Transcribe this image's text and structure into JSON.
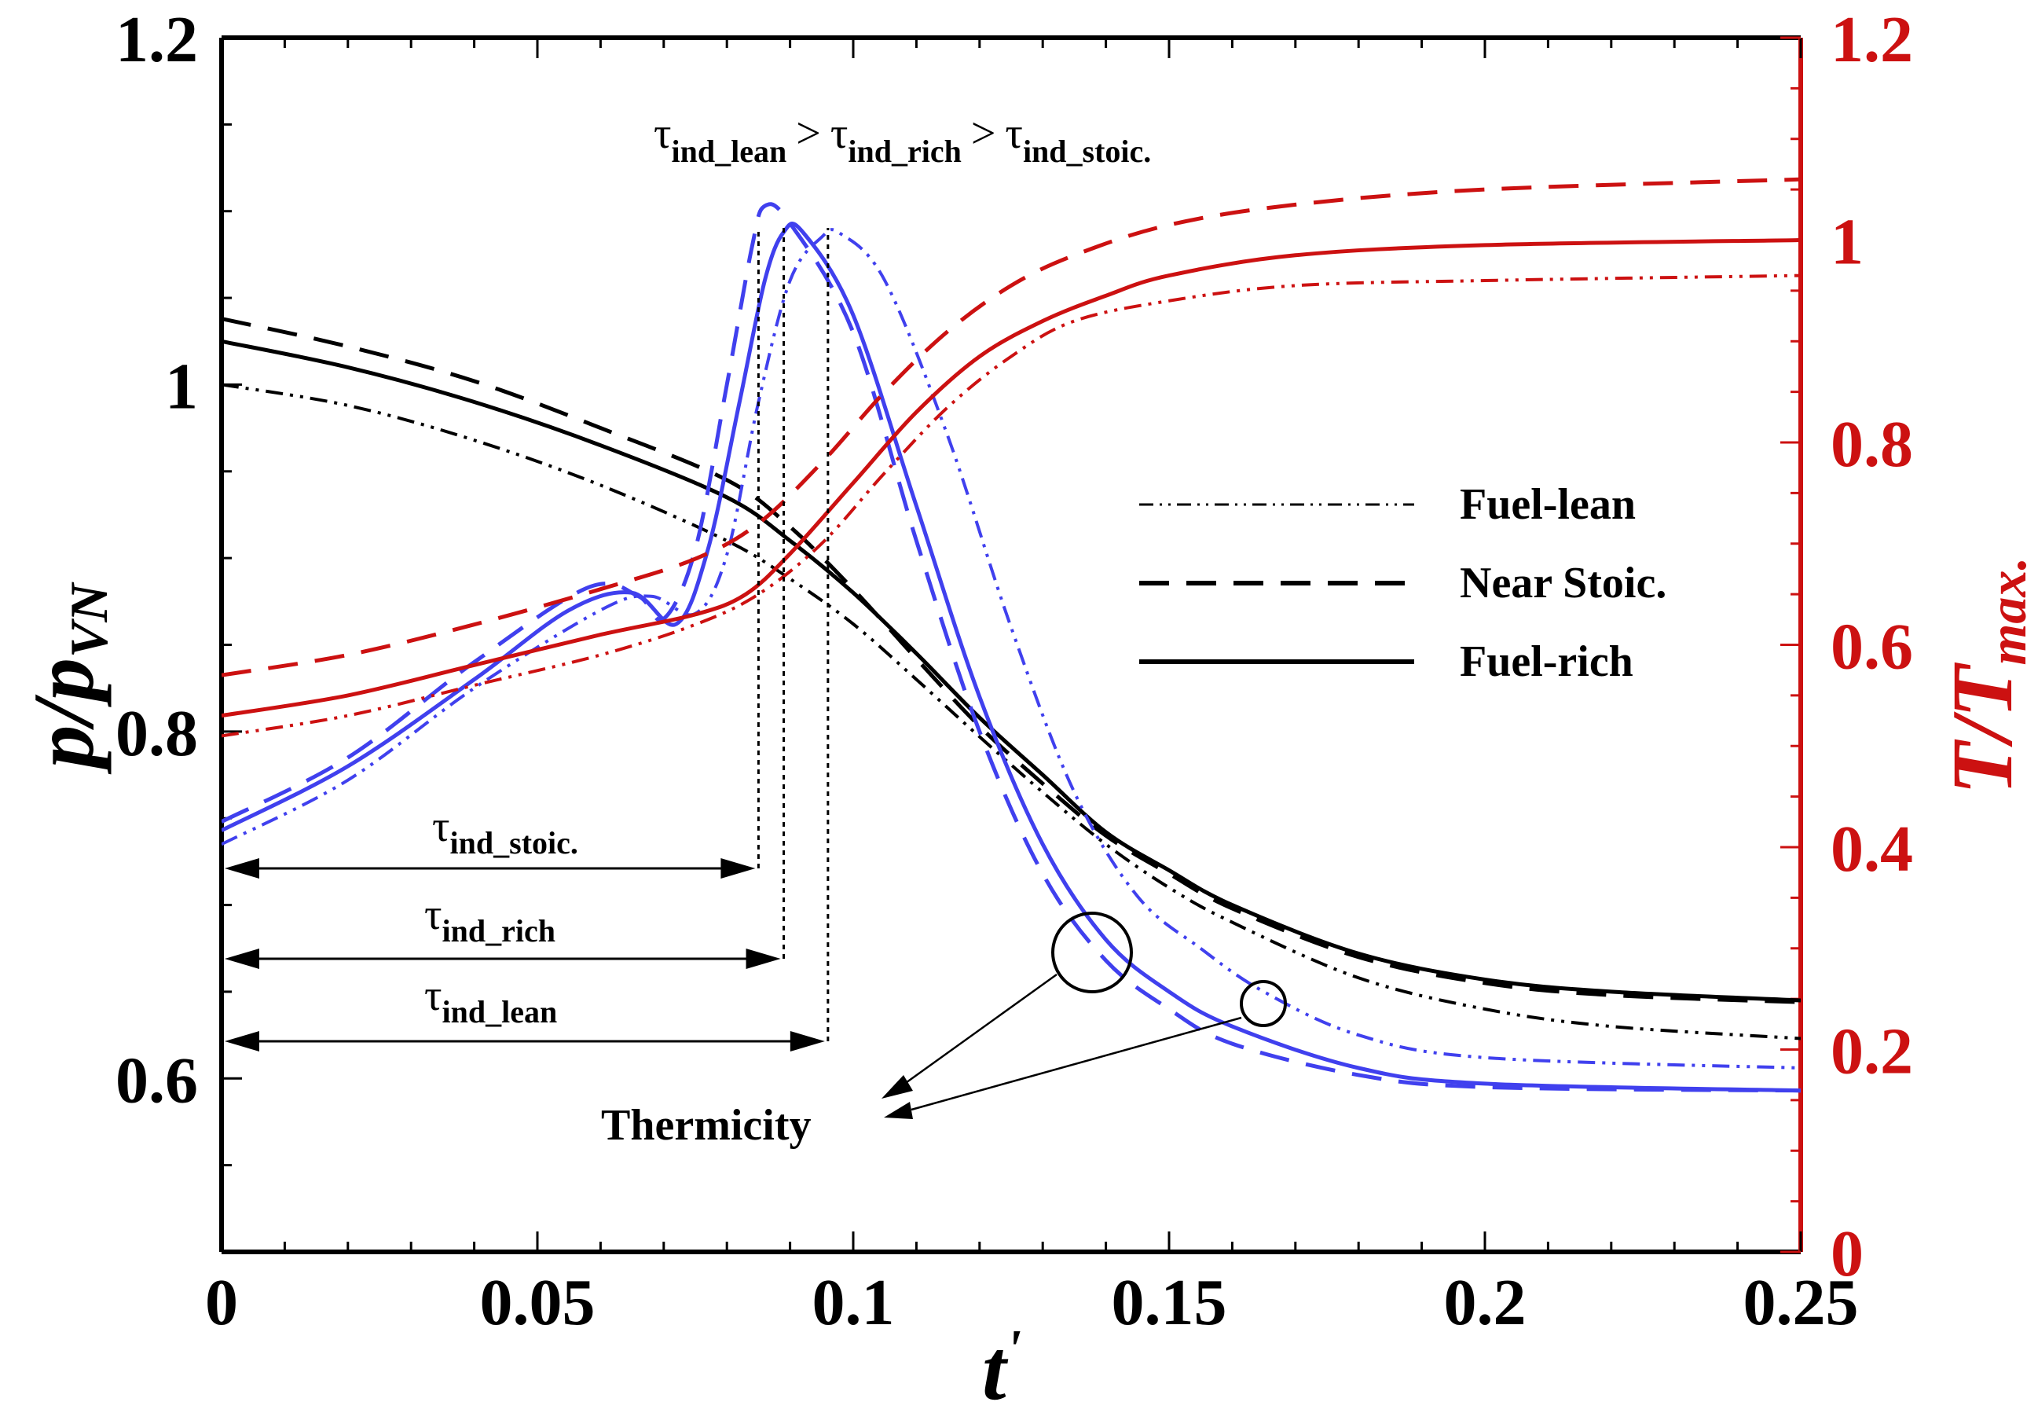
{
  "chart_data": {
    "type": "line",
    "xlabel": "t'",
    "ylabel_left": "p/p_VN",
    "ylabel_right": "T/T_max.",
    "xlim": [
      0,
      0.25
    ],
    "ylim_left": [
      0.5,
      1.2
    ],
    "ylim_right": [
      0,
      1.2
    ],
    "x_ticks": [
      "0",
      "0.05",
      "0.1",
      "0.15",
      "0.2",
      "0.25"
    ],
    "y_left_ticks": [
      "0.6",
      "0.8",
      "1",
      "1.2"
    ],
    "y_right_ticks": [
      "0",
      "0.2",
      "0.4",
      "0.6",
      "0.8",
      "1",
      "1.2"
    ],
    "legend": [
      {
        "label": "Fuel-lean",
        "style": "dash-dot-dot"
      },
      {
        "label": "Near Stoic.",
        "style": "dashed"
      },
      {
        "label": "Fuel-rich",
        "style": "solid"
      }
    ],
    "annotations": {
      "ordering": {
        "t1": "ind_lean",
        "t2": "ind_rich",
        "t3": "ind_stoic.",
        "gt": ">"
      },
      "tau_stoic": "ind_stoic.",
      "tau_rich": "ind_rich",
      "tau_lean": "ind_lean",
      "thermicity": "Thermicity",
      "tau_symbol": "τ"
    },
    "induction_times": {
      "stoic": 0.085,
      "rich": 0.089,
      "lean": 0.096
    },
    "series": [
      {
        "name": "Pressure, Fuel-rich",
        "axis": "left",
        "color": "#000000",
        "style": "solid",
        "x": [
          0,
          0.02,
          0.04,
          0.06,
          0.08,
          0.09,
          0.1,
          0.11,
          0.12,
          0.13,
          0.14,
          0.15,
          0.16,
          0.18,
          0.2,
          0.22,
          0.25
        ],
        "y": [
          1.025,
          1.01,
          0.99,
          0.965,
          0.935,
          0.91,
          0.88,
          0.845,
          0.808,
          0.775,
          0.742,
          0.72,
          0.7,
          0.672,
          0.657,
          0.65,
          0.645
        ]
      },
      {
        "name": "Pressure, Near Stoic.",
        "axis": "left",
        "color": "#000000",
        "style": "dashed",
        "x": [
          0,
          0.02,
          0.04,
          0.06,
          0.08,
          0.09,
          0.1,
          0.11,
          0.12,
          0.13,
          0.14,
          0.15,
          0.16,
          0.18,
          0.2,
          0.22,
          0.25
        ],
        "y": [
          1.038,
          1.022,
          1.002,
          0.975,
          0.945,
          0.918,
          0.882,
          0.842,
          0.803,
          0.77,
          0.74,
          0.718,
          0.698,
          0.67,
          0.655,
          0.648,
          0.644
        ]
      },
      {
        "name": "Pressure, Fuel-lean",
        "axis": "left",
        "color": "#000000",
        "style": "dash-dot-dot",
        "x": [
          0,
          0.02,
          0.04,
          0.06,
          0.08,
          0.09,
          0.1,
          0.11,
          0.12,
          0.13,
          0.14,
          0.15,
          0.16,
          0.18,
          0.2,
          0.22,
          0.25
        ],
        "y": [
          1.0,
          0.988,
          0.968,
          0.942,
          0.91,
          0.888,
          0.862,
          0.83,
          0.797,
          0.765,
          0.735,
          0.71,
          0.69,
          0.658,
          0.64,
          0.63,
          0.623
        ]
      },
      {
        "name": "Pressure peak, Fuel-rich",
        "axis": "left",
        "color": "#4040ee",
        "style": "solid",
        "x": [
          0,
          0.02,
          0.04,
          0.055,
          0.065,
          0.072,
          0.077,
          0.082,
          0.086,
          0.089,
          0.092,
          0.1,
          0.11,
          0.12,
          0.13,
          0.14,
          0.15,
          0.16,
          0.18,
          0.2,
          0.25
        ],
        "y": [
          0.743,
          0.78,
          0.83,
          0.87,
          0.88,
          0.862,
          0.905,
          0.99,
          1.06,
          1.088,
          1.088,
          1.04,
          0.93,
          0.82,
          0.735,
          0.68,
          0.65,
          0.63,
          0.606,
          0.597,
          0.593
        ]
      },
      {
        "name": "Pressure peak, Near Stoic.",
        "axis": "left",
        "color": "#4040ee",
        "style": "dashed",
        "x": [
          0,
          0.02,
          0.04,
          0.058,
          0.066,
          0.07,
          0.075,
          0.08,
          0.084,
          0.086,
          0.09,
          0.1,
          0.11,
          0.12,
          0.13,
          0.14,
          0.15,
          0.16,
          0.18,
          0.2,
          0.25
        ],
        "y": [
          0.748,
          0.785,
          0.84,
          0.883,
          0.878,
          0.865,
          0.905,
          1.0,
          1.08,
          1.103,
          1.093,
          1.03,
          0.91,
          0.8,
          0.718,
          0.668,
          0.64,
          0.62,
          0.602,
          0.595,
          0.593
        ]
      },
      {
        "name": "Pressure peak, Fuel-lean",
        "axis": "left",
        "color": "#4040ee",
        "style": "dash-dot-dot",
        "x": [
          0,
          0.02,
          0.04,
          0.06,
          0.068,
          0.075,
          0.08,
          0.085,
          0.09,
          0.095,
          0.098,
          0.105,
          0.115,
          0.125,
          0.135,
          0.145,
          0.155,
          0.165,
          0.18,
          0.2,
          0.25
        ],
        "y": [
          0.735,
          0.772,
          0.825,
          0.87,
          0.878,
          0.868,
          0.902,
          0.99,
          1.06,
          1.085,
          1.087,
          1.06,
          0.97,
          0.86,
          0.765,
          0.705,
          0.675,
          0.65,
          0.625,
          0.612,
          0.606
        ]
      },
      {
        "name": "Temperature, Fuel-rich",
        "axis": "right",
        "color": "#cc1111",
        "style": "solid",
        "x": [
          0,
          0.02,
          0.04,
          0.06,
          0.075,
          0.083,
          0.09,
          0.1,
          0.11,
          0.12,
          0.13,
          0.14,
          0.15,
          0.17,
          0.2,
          0.25
        ],
        "y": [
          0.53,
          0.55,
          0.58,
          0.61,
          0.63,
          0.65,
          0.69,
          0.76,
          0.83,
          0.885,
          0.92,
          0.945,
          0.965,
          0.985,
          0.995,
          1.0
        ]
      },
      {
        "name": "Temperature, Near Stoic.",
        "axis": "right",
        "color": "#cc1111",
        "style": "dashed",
        "x": [
          0,
          0.02,
          0.04,
          0.06,
          0.075,
          0.085,
          0.095,
          0.105,
          0.115,
          0.125,
          0.135,
          0.15,
          0.17,
          0.2,
          0.25
        ],
        "y": [
          0.57,
          0.59,
          0.62,
          0.655,
          0.685,
          0.72,
          0.78,
          0.85,
          0.91,
          0.955,
          0.985,
          1.015,
          1.035,
          1.05,
          1.06
        ]
      },
      {
        "name": "Temperature, Fuel-lean",
        "axis": "right",
        "color": "#cc1111",
        "style": "dash-dot-dot",
        "x": [
          0,
          0.02,
          0.04,
          0.06,
          0.075,
          0.085,
          0.095,
          0.105,
          0.115,
          0.125,
          0.135,
          0.15,
          0.17,
          0.2,
          0.25
        ],
        "y": [
          0.51,
          0.53,
          0.56,
          0.59,
          0.62,
          0.65,
          0.7,
          0.77,
          0.835,
          0.885,
          0.92,
          0.94,
          0.955,
          0.96,
          0.965
        ]
      }
    ]
  }
}
